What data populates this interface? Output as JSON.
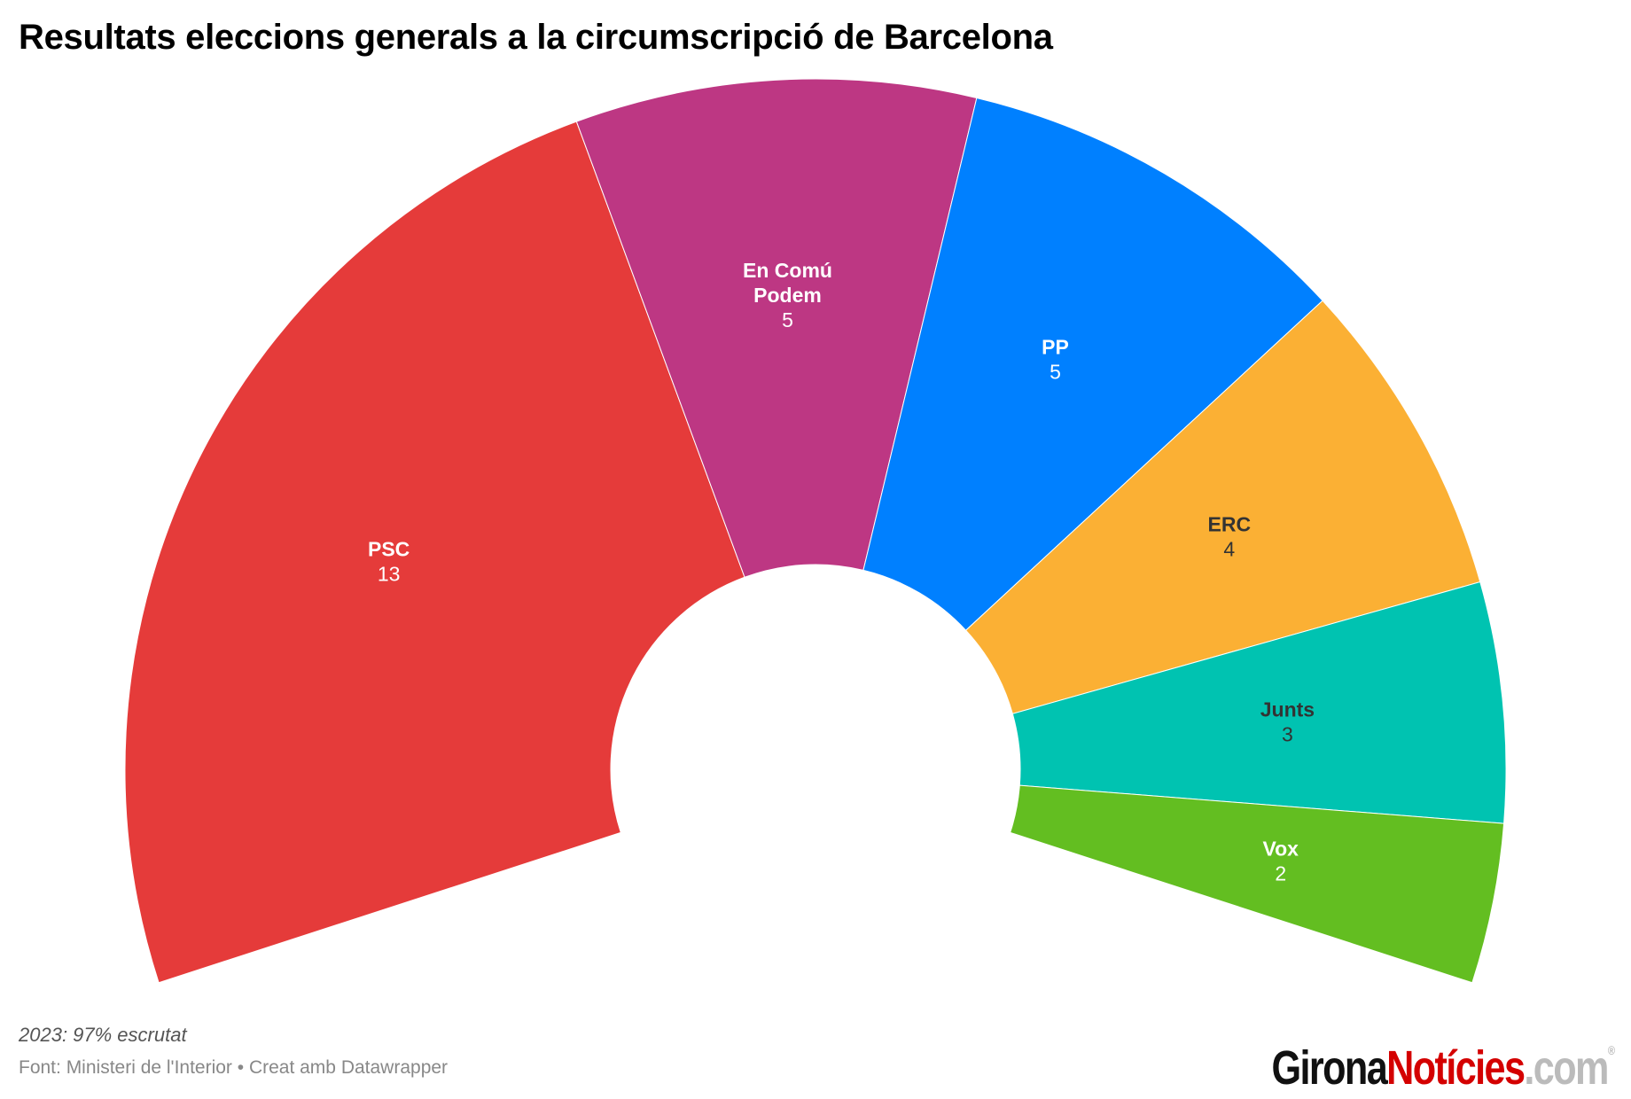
{
  "title": "Resultats eleccions generals a la circumscripció de Barcelona",
  "chart_data": {
    "type": "pie",
    "subtype": "parliament-semicircle",
    "title": "Resultats eleccions generals a la circumscripció de Barcelona",
    "total_seats": 32,
    "series": [
      {
        "name": "PSC",
        "label_lines": [
          "PSC"
        ],
        "value": 13,
        "color": "#e53b3a",
        "text_color": "#ffffff"
      },
      {
        "name": "En Comú Podem",
        "label_lines": [
          "En Comú",
          "Podem"
        ],
        "value": 5,
        "color": "#bd3783",
        "text_color": "#ffffff"
      },
      {
        "name": "PP",
        "label_lines": [
          "PP"
        ],
        "value": 5,
        "color": "#0080ff",
        "text_color": "#ffffff"
      },
      {
        "name": "ERC",
        "label_lines": [
          "ERC"
        ],
        "value": 4,
        "color": "#fbb034",
        "text_color": "#333333"
      },
      {
        "name": "Junts",
        "label_lines": [
          "Junts"
        ],
        "value": 3,
        "color": "#00c3b1",
        "text_color": "#333333"
      },
      {
        "name": "Vox",
        "label_lines": [
          "Vox"
        ],
        "value": 2,
        "color": "#63be21",
        "text_color": "#ffffff"
      }
    ]
  },
  "footer": {
    "note": "2023: 97% escrutat",
    "source": "Font: Ministeri de l'Interior • Creat amb Datawrapper"
  },
  "logo": {
    "part1": "Girona",
    "part2": "Notícies",
    "part3": ".com",
    "mark": "®"
  }
}
